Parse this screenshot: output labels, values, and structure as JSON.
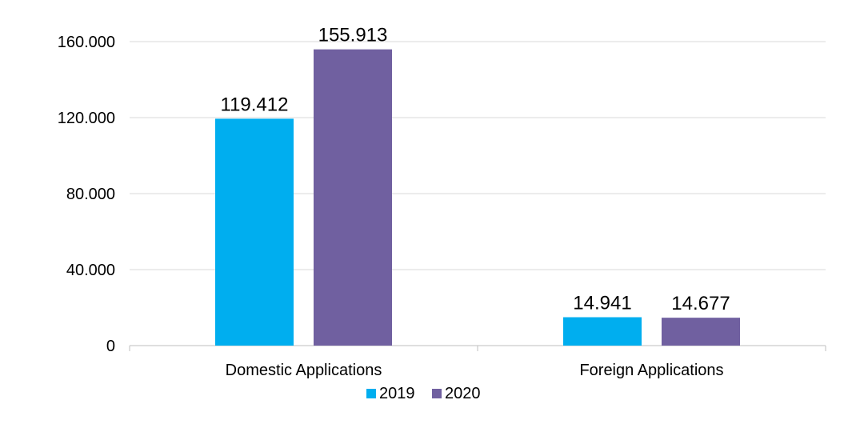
{
  "chart_data": {
    "type": "bar",
    "categories": [
      "Domestic Applications",
      "Foreign Applications"
    ],
    "series": [
      {
        "name": "2019",
        "values": [
          119412,
          14941
        ],
        "labels": [
          "119.412",
          "14.941"
        ],
        "color": "#00AEEF"
      },
      {
        "name": "2020",
        "values": [
          155913,
          14677
        ],
        "labels": [
          "155.913",
          "14.677"
        ],
        "color": "#7060A0"
      }
    ],
    "ylim": [
      0,
      160000
    ],
    "yticks": [
      {
        "value": 0,
        "label": "0"
      },
      {
        "value": 40000,
        "label": "40.000"
      },
      {
        "value": 80000,
        "label": "80.000"
      },
      {
        "value": 120000,
        "label": "120.000"
      },
      {
        "value": 160000,
        "label": "160.000"
      }
    ],
    "grid": true,
    "legend": "bottom",
    "title": "",
    "xlabel": "",
    "ylabel": ""
  }
}
